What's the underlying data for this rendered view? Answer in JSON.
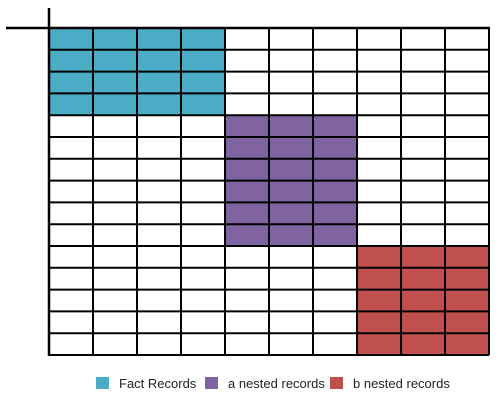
{
  "grid": {
    "columns": 10,
    "rows": 15,
    "line_color": "#000000",
    "background_color": "#ffffff"
  },
  "blocks": [
    {
      "name": "fact-records-block",
      "legend_index": 0,
      "col_start": 0,
      "col_end": 3,
      "row_start": 0,
      "row_end": 3
    },
    {
      "name": "a-nested-records-block",
      "legend_index": 1,
      "col_start": 4,
      "col_end": 6,
      "row_start": 4,
      "row_end": 9
    },
    {
      "name": "b-nested-records-block",
      "legend_index": 2,
      "col_start": 7,
      "col_end": 9,
      "row_start": 10,
      "row_end": 14
    }
  ],
  "legend": [
    {
      "label": "Fact Records",
      "color": "#4bacc6"
    },
    {
      "label": "a nested records",
      "color": "#8064a2"
    },
    {
      "label": "b nested records",
      "color": "#c0504d"
    }
  ]
}
